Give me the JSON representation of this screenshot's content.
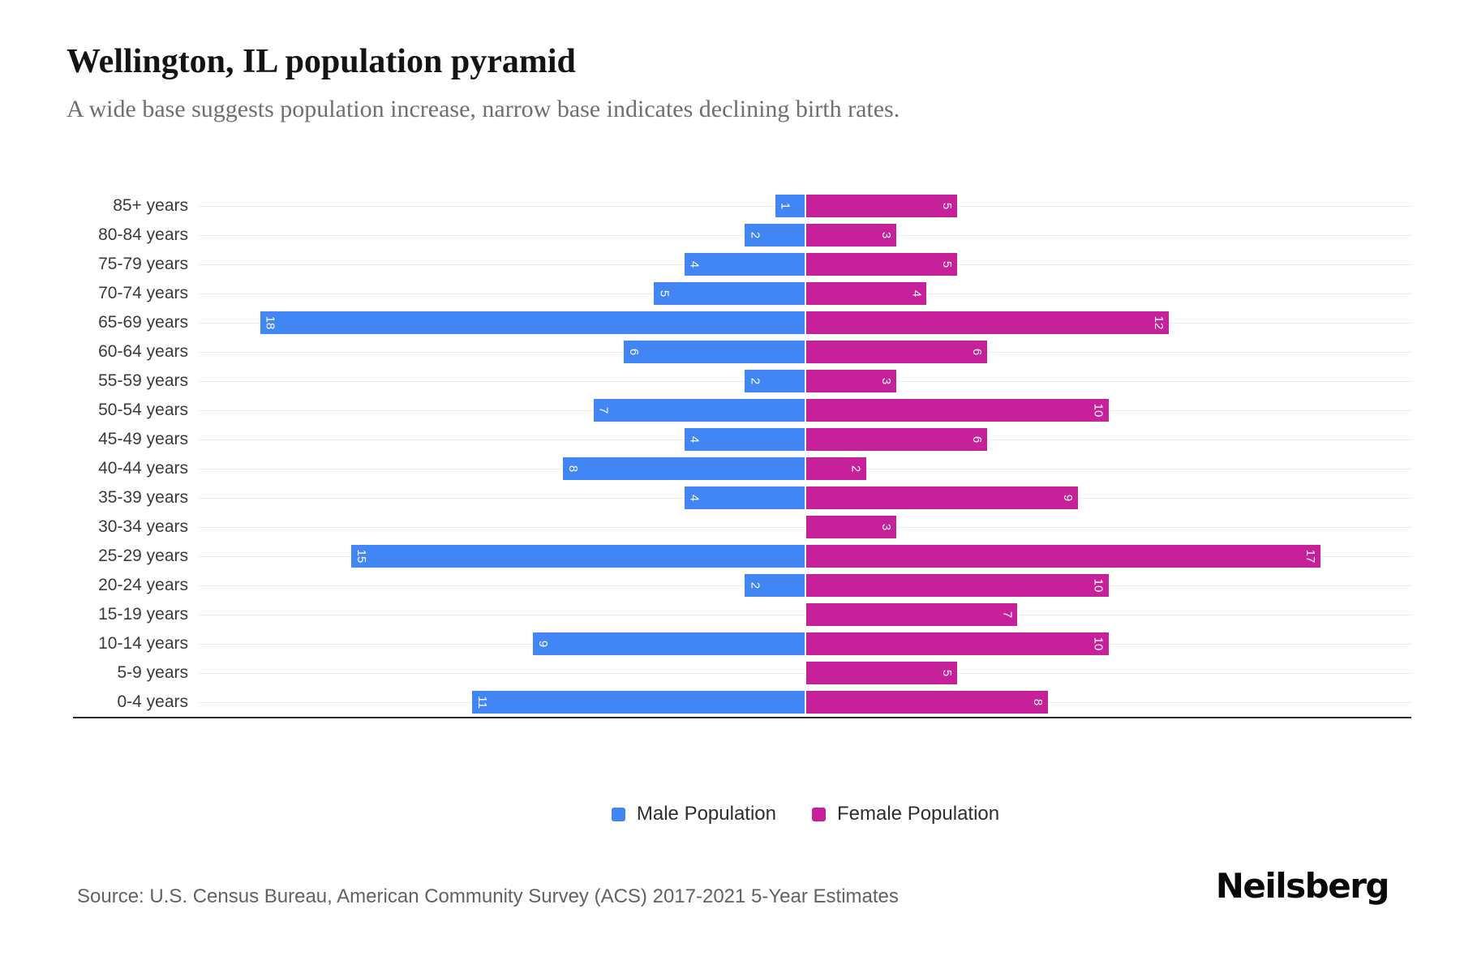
{
  "header": {
    "title": "Wellington, IL population pyramid",
    "subtitle": "A wide base suggests population increase, narrow base indicates declining birth rates."
  },
  "chart_data": {
    "type": "bar",
    "subtype": "population-pyramid-horizontal",
    "title": "Wellington, IL population pyramid",
    "categories": [
      "85+ years",
      "80-84 years",
      "75-79 years",
      "70-74 years",
      "65-69 years",
      "60-64 years",
      "55-59 years",
      "50-54 years",
      "45-49 years",
      "40-44 years",
      "35-39 years",
      "30-34 years",
      "25-29 years",
      "20-24 years",
      "15-19 years",
      "10-14 years",
      "5-9 years",
      "0-4 years"
    ],
    "series": [
      {
        "name": "Male Population",
        "side": "left",
        "color": "#4285F4",
        "values": [
          1,
          2,
          4,
          5,
          18,
          6,
          2,
          7,
          4,
          8,
          4,
          0,
          15,
          2,
          0,
          9,
          0,
          11
        ]
      },
      {
        "name": "Female Population",
        "side": "right",
        "color": "#C6209A",
        "values": [
          5,
          3,
          5,
          4,
          12,
          6,
          3,
          10,
          6,
          2,
          9,
          3,
          17,
          10,
          7,
          10,
          5,
          8
        ]
      }
    ],
    "xmax": 20,
    "grid": "horizontal-light",
    "gridline_color": "#ececec",
    "axis_line_color": "#2b2b2b",
    "bar_label_style": "white, rotated 90deg, inside outer end, zero values have no bar",
    "legend_position": "bottom-center"
  },
  "legend": {
    "male_label": "Male Population",
    "female_label": "Female Population"
  },
  "footer": {
    "source": "Source: U.S. Census Bureau, American Community Survey (ACS) 2017-2021 5-Year Estimates",
    "brand": "Neilsberg"
  }
}
